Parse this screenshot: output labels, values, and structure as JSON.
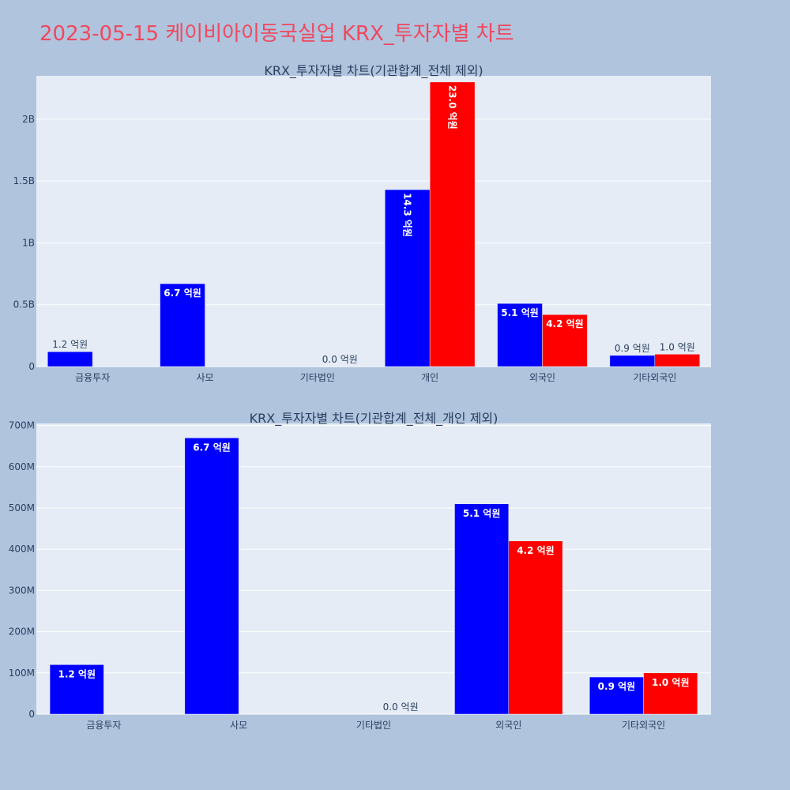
{
  "title": "2023-05-15 케이비아이동국실업 KRX_투자자별 차트",
  "chart_data": [
    {
      "type": "bar",
      "title": "KRX_투자자별 차트(기관합계_전체 제외)",
      "categories": [
        "금융투자",
        "사모",
        "기타법인",
        "개인",
        "외국인",
        "기타외국인"
      ],
      "ylim": [
        0,
        2350000000
      ],
      "yticks": [
        0,
        500000000,
        1000000000,
        1500000000,
        2000000000
      ],
      "ytick_labels": [
        "0",
        "0.5B",
        "1B",
        "1.5B",
        "2B"
      ],
      "grid": true,
      "legend": "none",
      "series": [
        {
          "color": "#0000ff",
          "values": [
            120000000,
            670000000,
            0,
            1430000000,
            510000000,
            90000000
          ],
          "labels": [
            "1.2 억원",
            "6.7 억원",
            "",
            "14.3 억원",
            "5.1 억원",
            "0.9 억원"
          ]
        },
        {
          "color": "#ff0000",
          "values": [
            0,
            0,
            0,
            2300000000,
            420000000,
            100000000
          ],
          "labels": [
            "",
            "",
            "0.0 억원",
            "23.0 억원",
            "4.2 억원",
            "1.0 억원"
          ]
        }
      ]
    },
    {
      "type": "bar",
      "title": "KRX_투자자별 차트(기관합계_전체_개인 제외)",
      "categories": [
        "금융투자",
        "사모",
        "기타법인",
        "외국인",
        "기타외국인"
      ],
      "ylim": [
        0,
        705000000
      ],
      "yticks": [
        0,
        100000000,
        200000000,
        300000000,
        400000000,
        500000000,
        600000000,
        700000000
      ],
      "ytick_labels": [
        "0",
        "100M",
        "200M",
        "300M",
        "400M",
        "500M",
        "600M",
        "700M"
      ],
      "grid": true,
      "legend": "none",
      "series": [
        {
          "color": "#0000ff",
          "values": [
            120000000,
            670000000,
            0,
            510000000,
            90000000
          ],
          "labels": [
            "1.2 억원",
            "6.7 억원",
            "",
            "5.1 억원",
            "0.9 억원"
          ]
        },
        {
          "color": "#ff0000",
          "values": [
            0,
            0,
            0,
            420000000,
            100000000
          ],
          "labels": [
            "",
            "",
            "0.0 억원",
            "4.2 억원",
            "1.0 억원"
          ]
        }
      ]
    }
  ]
}
